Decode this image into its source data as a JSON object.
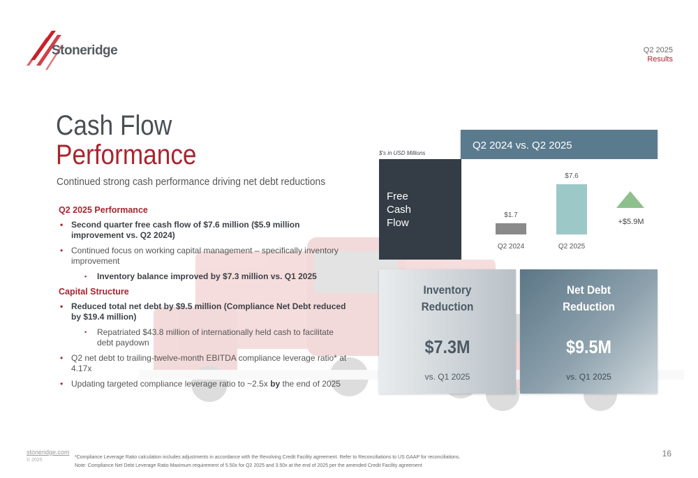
{
  "header": {
    "brand": "Stoneridge",
    "period": "Q2 2025",
    "results_label": "Results"
  },
  "title": {
    "line1": "Cash Flow",
    "line2": "Performance"
  },
  "subtitle": "Continued strong cash performance driving net debt reductions",
  "sections": {
    "perf_heading": "Q2 2025 Performance",
    "perf_b1": "Second quarter free cash flow of $7.6 million ($5.9 million improvement vs. Q2 2024)",
    "perf_b2": "Continued focus on working capital management – specifically inventory improvement",
    "perf_sub1": "Inventory balance improved by $7.3 million vs. Q1 2025",
    "cap_heading": "Capital Structure",
    "cap_b1": "Reduced total net debt by $9.5 million (Compliance Net Debt reduced by $19.4 million)",
    "cap_sub1": "Repatriated $43.8 million of internationally held cash to facilitate debt paydown",
    "cap_b2": "Q2 net debt to trailing-twelve-month EBITDA compliance leverage ratio* at 4.17x",
    "cap_b3_pre": "Updating targeted compliance leverage ratio to ~2.5x ",
    "cap_b3_by": "by",
    "cap_b3_post": " the end of 2025"
  },
  "units_note": "$'s in USD Millions",
  "fcf": {
    "header": "Q2 2024 vs. Q2 2025",
    "label_l1": "Free",
    "label_l2": "Cash",
    "label_l3": "Flow",
    "change_label": "+$5.9M"
  },
  "chart_data": {
    "type": "bar",
    "categories": [
      "Q2 2024",
      "Q2 2025"
    ],
    "values": [
      1.7,
      7.6
    ],
    "value_labels": [
      "$1.7",
      "$7.6"
    ],
    "colors": [
      "#8a8a8a",
      "#9cc8c8"
    ],
    "ylim": [
      0,
      7.6
    ],
    "title": "",
    "xlabel": "",
    "ylabel": ""
  },
  "cards": {
    "inventory": {
      "title_l1": "Inventory",
      "title_l2": "Reduction",
      "value": "$7.3M",
      "compare": "vs. Q1 2025"
    },
    "net_debt": {
      "title_l1": "Net Debt",
      "title_l2": "Reduction",
      "value": "$9.5M",
      "compare": "vs. Q1 2025"
    }
  },
  "footer": {
    "link": "stoneridge.com",
    "copyright": "© 2025",
    "note1": "*Compliance Leverage Ratio calculation includes adjustments in accordance with the Revolving Credit Facility agreement. Refer to Reconciliations to US GAAP for reconciliations.",
    "note2": "Note: Compliance Net Debt Leverage Ratio Maximum requirement of 5.50x for Q2 2025 and 3.50x at the end of 2025 per the amended Credit Facility agreement",
    "page": "16"
  },
  "colors": {
    "brand_red": "#a8252e",
    "header_blue": "#5a7a8e",
    "dark_panel": "#343d46",
    "bar_prior": "#8a8a8a",
    "bar_current": "#9cc8c8",
    "up_arrow": "#8dc08d"
  }
}
